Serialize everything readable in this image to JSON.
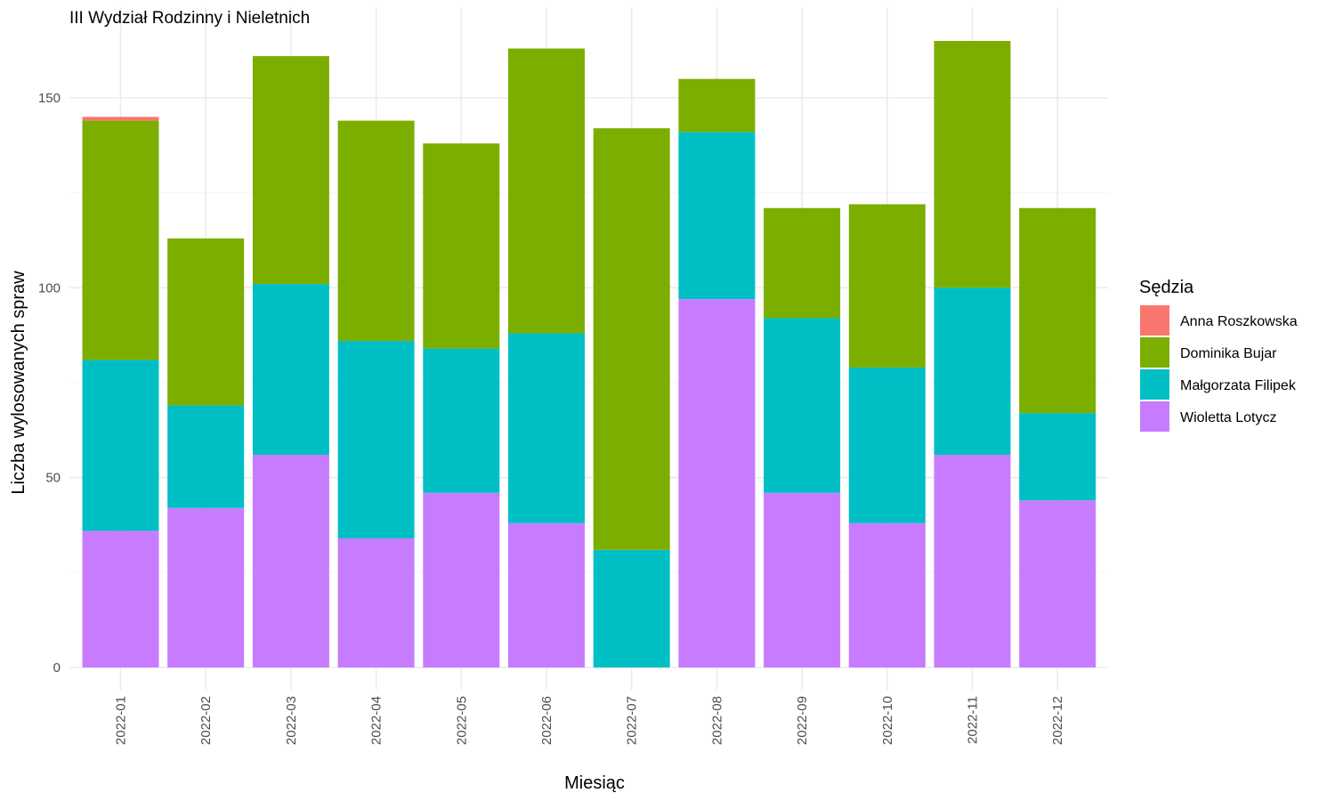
{
  "chart_data": {
    "type": "bar",
    "stacked": true,
    "title": "III Wydział Rodzinny i Nieletnich",
    "xlabel": "Miesiąc",
    "ylabel": "Liczba wylosowanych spraw",
    "ylim": [
      0,
      168
    ],
    "yticks": [
      0,
      50,
      100,
      150
    ],
    "grid": true,
    "legend": {
      "title": "Sędzia",
      "position": "right"
    },
    "categories": [
      "2022-01",
      "2022-02",
      "2022-03",
      "2022-04",
      "2022-05",
      "2022-06",
      "2022-07",
      "2022-08",
      "2022-09",
      "2022-10",
      "2022-11",
      "2022-12"
    ],
    "series": [
      {
        "name": "Anna Roszkowska",
        "color": "#F8766D",
        "values": [
          1,
          0,
          0,
          0,
          0,
          0,
          0,
          0,
          0,
          0,
          0,
          0
        ]
      },
      {
        "name": "Dominika Bujar",
        "color": "#7CAE00",
        "values": [
          63,
          44,
          60,
          58,
          54,
          75,
          111,
          14,
          29,
          43,
          65,
          54
        ]
      },
      {
        "name": "Małgorzata Filipek",
        "color": "#00BFC4",
        "values": [
          45,
          27,
          45,
          52,
          38,
          50,
          31,
          44,
          46,
          41,
          44,
          23
        ]
      },
      {
        "name": "Wioletta Lotycz",
        "color": "#C77CFF",
        "values": [
          36,
          42,
          56,
          34,
          46,
          38,
          0,
          97,
          46,
          38,
          56,
          44
        ]
      }
    ]
  }
}
